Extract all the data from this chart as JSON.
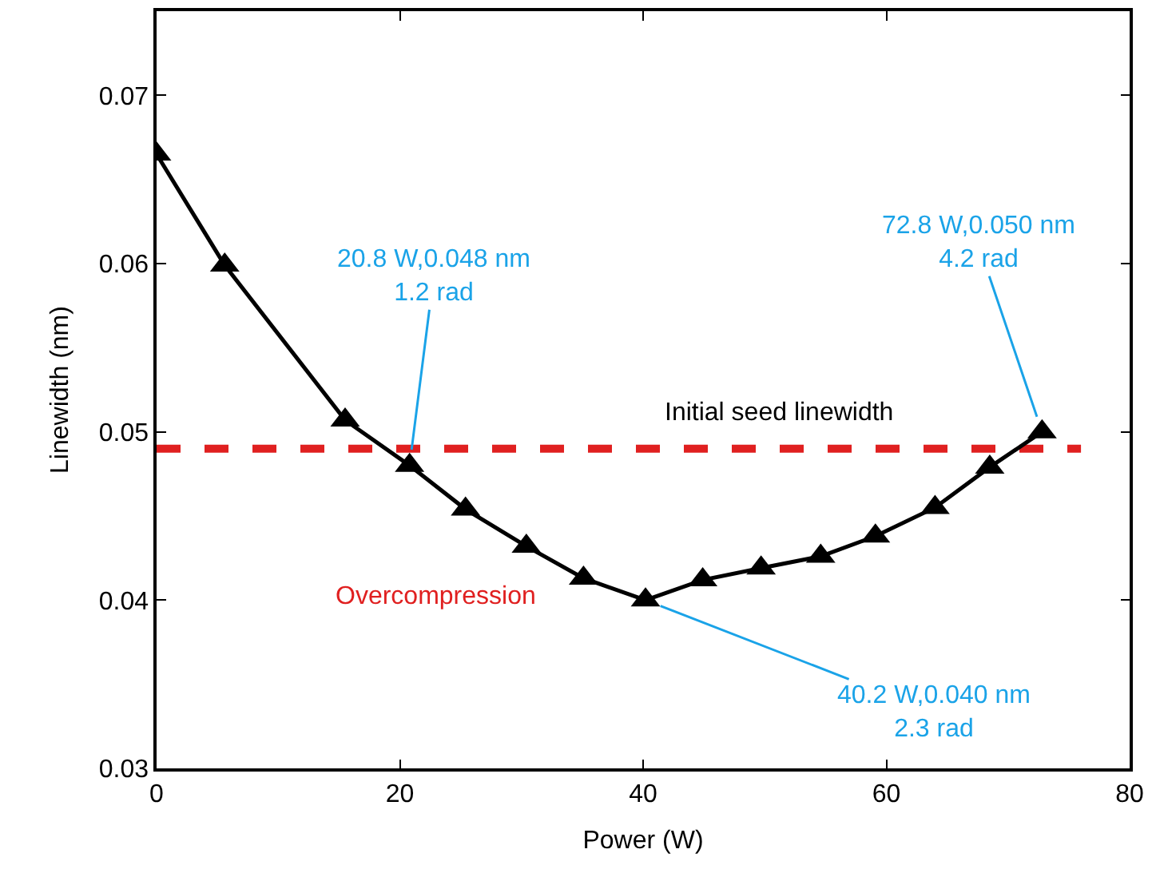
{
  "chart_data": {
    "type": "line",
    "xlabel": "Power (W)",
    "ylabel": "Linewidth (nm)",
    "x": [
      0,
      5.6,
      15.5,
      20.8,
      25.4,
      30.4,
      35.1,
      40.2,
      44.9,
      49.7,
      54.6,
      59.1,
      64.0,
      68.5,
      72.8
    ],
    "series": [
      {
        "color": "#000000",
        "values": [
          0.0665,
          0.0599,
          0.0507,
          0.048,
          0.0454,
          0.0432,
          0.0413,
          0.04,
          0.0412,
          0.0419,
          0.0426,
          0.0438,
          0.0455,
          0.0479,
          0.05
        ]
      }
    ],
    "marker": "triangle",
    "line_style": "solid",
    "grid": false,
    "xlim": [
      0,
      80
    ],
    "xticks": [
      0,
      20,
      40,
      60,
      80
    ],
    "ylim": [
      0.03,
      0.075
    ],
    "yticks": [
      0.03,
      0.04,
      0.05,
      0.06,
      0.07
    ],
    "ref_lines": [
      {
        "axis": "y",
        "value": 0.049,
        "label": "Initial seed linewidth",
        "color": "#e02020",
        "line_style": "dashed"
      }
    ],
    "annotations": [
      {
        "text": "20.8 W,0.048 nm\n1.2 rad",
        "x": 20.8,
        "y": 0.048
      },
      {
        "text": "72.8 W,0.050 nm\n4.2 rad",
        "x": 72.8,
        "y": 0.05
      },
      {
        "text": "40.2 W,0.040 nm\n2.3 rad",
        "x": 40.2,
        "y": 0.04
      },
      "Overcompression"
    ]
  }
}
